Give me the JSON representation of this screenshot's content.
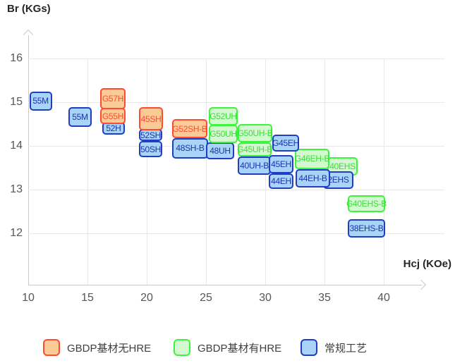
{
  "chart_data": {
    "type": "scatter",
    "mark": "labeled-range-box",
    "title": "",
    "xlabel": "Hcj (KOe)",
    "ylabel": "Br (KGs)",
    "x_ticks": [
      10,
      15,
      20,
      25,
      30,
      35,
      40
    ],
    "y_ticks": [
      16,
      15,
      14,
      13,
      12
    ],
    "xlim": [
      10,
      45
    ],
    "ylim": [
      11.6,
      16.6
    ],
    "grid": true,
    "legend_position": "bottom",
    "colors": {
      "orange": {
        "fill": "#FBCB97",
        "border": "#FF4B2E",
        "text": "#FF4B2E"
      },
      "green": {
        "fill": "#D4F8D0",
        "border": "#3DF53C",
        "text": "#38DF38"
      },
      "blue": {
        "fill": "#A9D4F7",
        "border": "#1E3FC2",
        "text": "#1A35AE"
      }
    },
    "legend": [
      {
        "key": "orange",
        "label": "GBDP基材无HRE"
      },
      {
        "key": "green",
        "label": "GBDP基材有HRE"
      },
      {
        "key": "blue",
        "label": "常规工艺"
      }
    ],
    "boxes": [
      {
        "label": "55M",
        "series": "blue",
        "hcj": [
          10.1,
          12.0
        ],
        "br": [
          14.8,
          15.25
        ]
      },
      {
        "label": "55M",
        "series": "blue",
        "hcj": [
          13.4,
          15.35
        ],
        "br": [
          14.43,
          14.88
        ]
      },
      {
        "label": "52H",
        "series": "blue",
        "hcj": [
          16.25,
          18.15
        ],
        "br": [
          14.26,
          14.55
        ]
      },
      {
        "label": "G55H",
        "series": "orange",
        "hcj": [
          16.07,
          18.21
        ],
        "br": [
          14.5,
          14.87
        ]
      },
      {
        "label": "G57H",
        "series": "orange",
        "hcj": [
          16.07,
          18.21
        ],
        "br": [
          14.84,
          15.32
        ]
      },
      {
        "label": "50SH",
        "series": "blue",
        "hcj": [
          19.35,
          21.31
        ],
        "br": [
          13.74,
          14.11
        ]
      },
      {
        "label": "52SH",
        "series": "blue",
        "hcj": [
          19.35,
          21.31
        ],
        "br": [
          14.11,
          14.39
        ]
      },
      {
        "label": "45SH",
        "series": "orange",
        "hcj": [
          19.35,
          21.37
        ],
        "br": [
          14.35,
          14.88
        ]
      },
      {
        "label": "48SH-B",
        "series": "blue",
        "hcj": [
          22.14,
          25.18
        ],
        "br": [
          13.71,
          14.18
        ]
      },
      {
        "label": "G52SH-B",
        "series": "orange",
        "hcj": [
          22.14,
          25.12
        ],
        "br": [
          14.18,
          14.61
        ]
      },
      {
        "label": "48UH",
        "series": "blue",
        "hcj": [
          25.0,
          27.38
        ],
        "br": [
          13.69,
          14.08
        ]
      },
      {
        "label": "G50UH",
        "series": "green",
        "hcj": [
          25.24,
          27.68
        ],
        "br": [
          14.06,
          14.48
        ]
      },
      {
        "label": "G52UH",
        "series": "green",
        "hcj": [
          25.24,
          27.68
        ],
        "br": [
          14.47,
          14.89
        ]
      },
      {
        "label": "40UH-B",
        "series": "blue",
        "hcj": [
          27.68,
          30.48
        ],
        "br": [
          13.34,
          13.76
        ]
      },
      {
        "label": "G45UH-B",
        "series": "green",
        "hcj": [
          27.68,
          30.54
        ],
        "br": [
          13.76,
          14.08
        ]
      },
      {
        "label": "G50UH-B",
        "series": "green",
        "hcj": [
          27.68,
          30.6
        ],
        "br": [
          14.08,
          14.5
        ]
      },
      {
        "label": "40EHS",
        "series": "green",
        "hcj": [
          35.24,
          37.8
        ],
        "br": [
          13.32,
          13.74
        ]
      },
      {
        "label": "2EHS",
        "series": "blue",
        "hcj": [
          34.88,
          37.44
        ],
        "br": [
          13.02,
          13.42
        ]
      },
      {
        "label": "44EH-B",
        "series": "blue",
        "hcj": [
          32.56,
          35.48
        ],
        "br": [
          13.05,
          13.47
        ]
      },
      {
        "label": "G46EH-B",
        "series": "green",
        "hcj": [
          32.5,
          35.42
        ],
        "br": [
          13.47,
          13.94
        ]
      },
      {
        "label": "44EH",
        "series": "blue",
        "hcj": [
          30.3,
          32.38
        ],
        "br": [
          13.02,
          13.37
        ]
      },
      {
        "label": "45EH",
        "series": "blue",
        "hcj": [
          30.3,
          32.38
        ],
        "br": [
          13.37,
          13.79
        ]
      },
      {
        "label": "G45EH",
        "series": "blue",
        "hcj": [
          30.6,
          32.86
        ],
        "br": [
          13.87,
          14.26
        ]
      },
      {
        "label": "G40EHS-B",
        "series": "green",
        "hcj": [
          36.96,
          40.12
        ],
        "br": [
          12.48,
          12.87
        ]
      },
      {
        "label": "38EHS-B",
        "series": "blue",
        "hcj": [
          36.96,
          40.12
        ],
        "br": [
          11.9,
          12.32
        ]
      }
    ]
  }
}
